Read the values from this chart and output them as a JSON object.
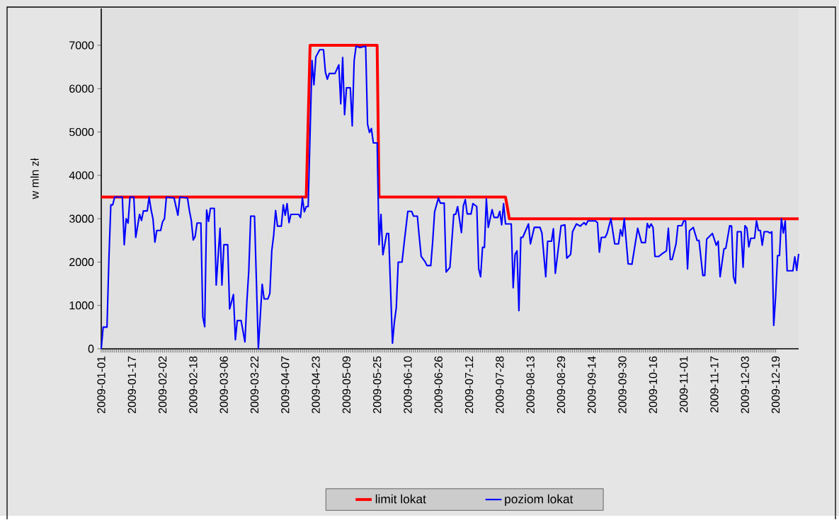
{
  "chart_data": {
    "type": "line",
    "ylabel": "w mln zł",
    "xlim": [
      "2009-01-01",
      "2009-12-31"
    ],
    "xticks": [
      "2009-01-01",
      "2009-01-17",
      "2009-02-02",
      "2009-02-18",
      "2009-03-06",
      "2009-03-22",
      "2009-04-07",
      "2009-04-23",
      "2009-05-09",
      "2009-05-25",
      "2009-06-10",
      "2009-06-26",
      "2009-07-12",
      "2009-07-28",
      "2009-08-13",
      "2009-08-29",
      "2009-09-14",
      "2009-09-30",
      "2009-10-16",
      "2009-11-01",
      "2009-11-17",
      "2009-12-03",
      "2009-12-19"
    ],
    "ylim": [
      0,
      7850
    ],
    "yticks": [
      0,
      1000,
      2000,
      3000,
      4000,
      5000,
      6000,
      7000
    ],
    "legend": "bottom",
    "grid": false,
    "series": [
      {
        "name": "limit lokat",
        "color": "#ff0000",
        "x": [
          "2009-01-01",
          "2009-04-18",
          "2009-04-20",
          "2009-05-25",
          "2009-05-26",
          "2009-07-31",
          "2009-08-02",
          "2009-12-31"
        ],
        "values": [
          3500,
          3500,
          7000,
          7000,
          3500,
          3500,
          3000,
          3000
        ]
      },
      {
        "name": "poziom lokat",
        "color": "#0000ff",
        "x": [
          "2009-01-01",
          "2009-01-02",
          "2009-01-04",
          "2009-01-05",
          "2009-01-06",
          "2009-01-07",
          "2009-01-08",
          "2009-01-12",
          "2009-01-13",
          "2009-01-14",
          "2009-01-15",
          "2009-01-16",
          "2009-01-18",
          "2009-01-19",
          "2009-01-21",
          "2009-01-22",
          "2009-01-23",
          "2009-01-25",
          "2009-01-26",
          "2009-01-27",
          "2009-01-28",
          "2009-01-29",
          "2009-01-30",
          "2009-02-01",
          "2009-02-02",
          "2009-02-03",
          "2009-02-04",
          "2009-02-08",
          "2009-02-10",
          "2009-02-11",
          "2009-02-15",
          "2009-02-16",
          "2009-02-17",
          "2009-02-18",
          "2009-02-19",
          "2009-02-20",
          "2009-02-22",
          "2009-02-23",
          "2009-02-24",
          "2009-02-25",
          "2009-02-26",
          "2009-02-27",
          "2009-03-01",
          "2009-03-02",
          "2009-03-04",
          "2009-03-05",
          "2009-03-06",
          "2009-03-08",
          "2009-03-09",
          "2009-03-11",
          "2009-03-12",
          "2009-03-13",
          "2009-03-15",
          "2009-03-17",
          "2009-03-18",
          "2009-03-19",
          "2009-03-20",
          "2009-03-22",
          "2009-03-24",
          "2009-03-26",
          "2009-03-27",
          "2009-03-29",
          "2009-03-30",
          "2009-03-31",
          "2009-04-01",
          "2009-04-02",
          "2009-04-03",
          "2009-04-05",
          "2009-04-06",
          "2009-04-07",
          "2009-04-08",
          "2009-04-09",
          "2009-04-10",
          "2009-04-14",
          "2009-04-15",
          "2009-04-16",
          "2009-04-17",
          "2009-04-18",
          "2009-04-19",
          "2009-04-21",
          "2009-04-22",
          "2009-04-23",
          "2009-04-25",
          "2009-04-27",
          "2009-04-28",
          "2009-04-29",
          "2009-04-30",
          "2009-05-03",
          "2009-05-05",
          "2009-05-06",
          "2009-05-07",
          "2009-05-08",
          "2009-05-09",
          "2009-05-11",
          "2009-05-12",
          "2009-05-13",
          "2009-05-14",
          "2009-05-16",
          "2009-05-19",
          "2009-05-20",
          "2009-05-21",
          "2009-05-22",
          "2009-05-23",
          "2009-05-25",
          "2009-05-26",
          "2009-05-27",
          "2009-05-28",
          "2009-05-30",
          "2009-05-31",
          "2009-06-02",
          "2009-06-03",
          "2009-06-04",
          "2009-06-05",
          "2009-06-07",
          "2009-06-08",
          "2009-06-10",
          "2009-06-12",
          "2009-06-13",
          "2009-06-15",
          "2009-06-16",
          "2009-06-17",
          "2009-06-19",
          "2009-06-20",
          "2009-06-22",
          "2009-06-23",
          "2009-06-24",
          "2009-06-26",
          "2009-06-27",
          "2009-06-29",
          "2009-06-30",
          "2009-07-02",
          "2009-07-04",
          "2009-07-05",
          "2009-07-06",
          "2009-07-08",
          "2009-07-09",
          "2009-07-10",
          "2009-07-11",
          "2009-07-13",
          "2009-07-14",
          "2009-07-16",
          "2009-07-17",
          "2009-07-18",
          "2009-07-19",
          "2009-07-20",
          "2009-07-21",
          "2009-07-22",
          "2009-07-24",
          "2009-07-25",
          "2009-07-27",
          "2009-07-28",
          "2009-07-29",
          "2009-07-30",
          "2009-07-31",
          "2009-08-03",
          "2009-08-04",
          "2009-08-05",
          "2009-08-06",
          "2009-08-07",
          "2009-08-08",
          "2009-08-09",
          "2009-08-12",
          "2009-08-13",
          "2009-08-15",
          "2009-08-18",
          "2009-08-19",
          "2009-08-21",
          "2009-08-22",
          "2009-08-24",
          "2009-08-25",
          "2009-08-26",
          "2009-08-29",
          "2009-08-31",
          "2009-09-01",
          "2009-09-03",
          "2009-09-04",
          "2009-09-06",
          "2009-09-08",
          "2009-09-10",
          "2009-09-11",
          "2009-09-12",
          "2009-09-16",
          "2009-09-17",
          "2009-09-18",
          "2009-09-19",
          "2009-09-21",
          "2009-09-22",
          "2009-09-24",
          "2009-09-26",
          "2009-09-28",
          "2009-09-29",
          "2009-09-30",
          "2009-10-01",
          "2009-10-03",
          "2009-10-05",
          "2009-10-08",
          "2009-10-10",
          "2009-10-12",
          "2009-10-13",
          "2009-10-14",
          "2009-10-15",
          "2009-10-16",
          "2009-10-17",
          "2009-10-19",
          "2009-10-21",
          "2009-10-23",
          "2009-10-24",
          "2009-10-25",
          "2009-10-26",
          "2009-10-28",
          "2009-10-29",
          "2009-10-31",
          "2009-11-01",
          "2009-11-02",
          "2009-11-03",
          "2009-11-04",
          "2009-11-06",
          "2009-11-08",
          "2009-11-09",
          "2009-11-11",
          "2009-11-12",
          "2009-11-13",
          "2009-11-16",
          "2009-11-18",
          "2009-11-19",
          "2009-11-20",
          "2009-11-22",
          "2009-11-23",
          "2009-11-25",
          "2009-11-26",
          "2009-11-27",
          "2009-11-28",
          "2009-11-29",
          "2009-12-01",
          "2009-12-02",
          "2009-12-03",
          "2009-12-04",
          "2009-12-05",
          "2009-12-06",
          "2009-12-08",
          "2009-12-09",
          "2009-12-10",
          "2009-12-11",
          "2009-12-12",
          "2009-12-13",
          "2009-12-15",
          "2009-12-16",
          "2009-12-17",
          "2009-12-18",
          "2009-12-19",
          "2009-12-20",
          "2009-12-21",
          "2009-12-22",
          "2009-12-23",
          "2009-12-24",
          "2009-12-25",
          "2009-12-28",
          "2009-12-29",
          "2009-12-30",
          "2009-12-31"
        ],
        "values": [
          0,
          500,
          500,
          2070,
          3320,
          3320,
          3500,
          3500,
          2400,
          3000,
          2900,
          3500,
          3500,
          2570,
          3100,
          2960,
          3180,
          3180,
          3500,
          3210,
          3000,
          2460,
          2730,
          2730,
          2930,
          3000,
          3500,
          3480,
          3080,
          3500,
          3480,
          3190,
          2960,
          2510,
          2590,
          2900,
          2900,
          740,
          510,
          3200,
          2940,
          3240,
          3240,
          1470,
          2780,
          1470,
          2400,
          2400,
          920,
          1250,
          210,
          650,
          650,
          160,
          1080,
          1800,
          3060,
          3060,
          0,
          1490,
          1150,
          1150,
          1280,
          2260,
          2620,
          3190,
          2830,
          2830,
          3320,
          3080,
          3350,
          2910,
          3100,
          3100,
          3030,
          3480,
          3160,
          3280,
          3280,
          6650,
          6090,
          6730,
          6900,
          6900,
          6380,
          6220,
          6350,
          6350,
          6550,
          5650,
          6720,
          5400,
          6020,
          6020,
          5140,
          6650,
          6980,
          6950,
          6980,
          5180,
          4990,
          5080,
          4750,
          4750,
          2400,
          3100,
          2170,
          2660,
          2660,
          130,
          620,
          950,
          2000,
          2000,
          2400,
          3170,
          3170,
          3060,
          3060,
          2570,
          2130,
          2010,
          1920,
          1920,
          2480,
          3160,
          3480,
          3360,
          3360,
          1770,
          1880,
          3100,
          3100,
          3280,
          2680,
          3300,
          3440,
          3110,
          3110,
          3350,
          3280,
          1850,
          1660,
          2340,
          2340,
          3460,
          2800,
          3210,
          3030,
          3030,
          3170,
          2860,
          3350,
          2880,
          2880,
          1410,
          2180,
          2260,
          880,
          2570,
          2570,
          2880,
          2420,
          2800,
          2800,
          2670,
          1660,
          2480,
          2480,
          2770,
          1740,
          2840,
          2860,
          2090,
          2180,
          2700,
          2880,
          2830,
          2910,
          2860,
          2950,
          2950,
          2910,
          2230,
          2570,
          2570,
          2660,
          3000,
          2420,
          2420,
          2750,
          2600,
          3000,
          1960,
          1950,
          2780,
          2450,
          2450,
          2890,
          2790,
          2880,
          2800,
          2130,
          2130,
          2200,
          2260,
          2780,
          2060,
          2060,
          2420,
          2840,
          2840,
          2950,
          2950,
          1840,
          2720,
          2800,
          2500,
          2500,
          1690,
          1690,
          2530,
          2660,
          2390,
          2480,
          1660,
          2300,
          2320,
          2840,
          2830,
          1660,
          1510,
          2700,
          2700,
          1880,
          2840,
          2780,
          2350,
          2550,
          2550,
          2950,
          2730,
          2730,
          2390,
          2700,
          2700,
          2670,
          2700,
          540,
          1220,
          2150,
          2150,
          3000,
          2670,
          2950,
          1800,
          1800,
          2120,
          1810,
          2190
        ]
      }
    ]
  }
}
